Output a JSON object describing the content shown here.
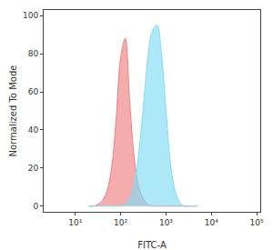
{
  "chart_data": {
    "type": "area",
    "x_label": "FITC-A",
    "y_label": "Normalized To Mode",
    "log": "x",
    "grid": false,
    "x": [
      20,
      25,
      32,
      40,
      50,
      63,
      79,
      100,
      126,
      158,
      200,
      251,
      316,
      398,
      501,
      631,
      794,
      1000,
      1259,
      1585,
      1995,
      2512,
      3162,
      3981,
      5012
    ],
    "series": [
      {
        "color": "#f08080",
        "values": [
          0,
          0,
          1,
          3,
          8,
          20,
          45,
          78,
          88,
          55,
          25,
          10,
          4,
          1,
          0,
          0,
          0,
          0,
          0,
          0,
          0,
          0,
          0,
          0,
          0
        ]
      },
      {
        "color": "#7fdcf5",
        "values": [
          0,
          0,
          0,
          0,
          0,
          0,
          0,
          0,
          1,
          4,
          12,
          28,
          52,
          78,
          92,
          95,
          80,
          50,
          22,
          8,
          2,
          0,
          0,
          0,
          0
        ]
      }
    ],
    "xlim": [
      2,
      120000
    ],
    "xticks": [
      {
        "value": 10,
        "label": "10¹"
      },
      {
        "value": 100,
        "label": "10²"
      },
      {
        "value": 1000,
        "label": "10³"
      },
      {
        "value": 10000,
        "label": "10⁴"
      },
      {
        "value": 100000,
        "label": "10⁵"
      }
    ],
    "ylim": [
      -3,
      103
    ],
    "yticks": [
      0,
      20,
      40,
      60,
      80,
      100
    ]
  }
}
